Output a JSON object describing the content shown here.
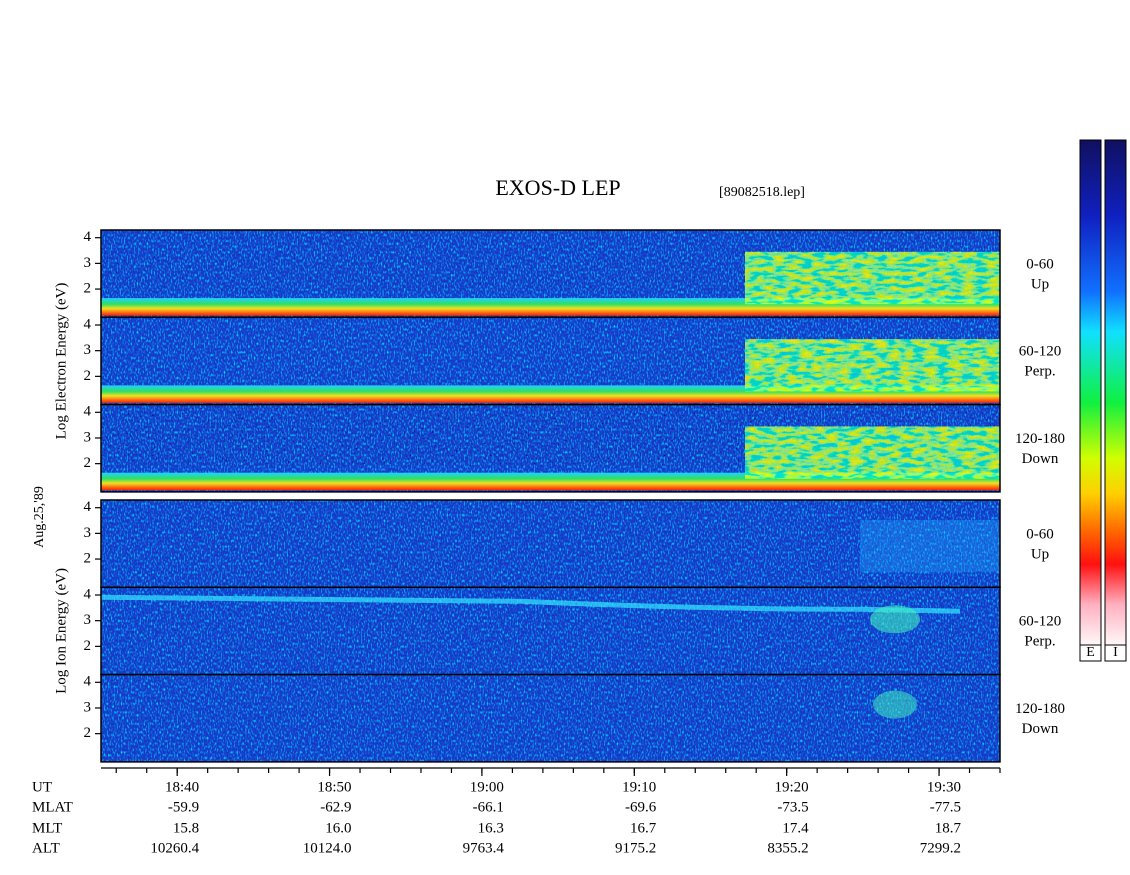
{
  "chart_data": {
    "type": "spectrogram",
    "title": "EXOS-D LEP",
    "subtitle": "[89082518.lep]",
    "date": "Aug.25,'89",
    "xlim": [
      "18:35",
      "19:34"
    ],
    "xminor_every": 2,
    "ylim": [
      0.9,
      4.3
    ],
    "yticks": [
      2,
      3,
      4
    ],
    "groups": [
      {
        "label": "Log  Electron  Energy (eV)",
        "panels": [
          {
            "angle": "0-60",
            "direction": "Up"
          },
          {
            "angle": "60-120",
            "direction": "Perp."
          },
          {
            "angle": "120-180",
            "direction": "Down"
          }
        ]
      },
      {
        "label": "Log  Ion  Energy (eV)",
        "panels": [
          {
            "angle": "0-60",
            "direction": "Up"
          },
          {
            "angle": "60-120",
            "direction": "Perp."
          },
          {
            "angle": "120-180",
            "direction": "Down"
          }
        ]
      }
    ],
    "rows": [
      {
        "label": "UT",
        "values": [
          "18:40",
          "18:50",
          "19:00",
          "19:10",
          "19:20",
          "19:30"
        ]
      },
      {
        "label": "MLAT",
        "values": [
          "-59.9",
          "-62.9",
          "-66.1",
          "-69.6",
          "-73.5",
          "-77.5"
        ]
      },
      {
        "label": "MLT",
        "values": [
          "15.8",
          "16.0",
          "16.3",
          "16.7",
          "17.4",
          "18.7"
        ]
      },
      {
        "label": "ALT",
        "values": [
          "10260.4",
          "10124.0",
          "9763.4",
          "9175.2",
          "8355.2",
          "7299.2"
        ]
      }
    ],
    "colorbars": [
      "E",
      "I"
    ]
  }
}
